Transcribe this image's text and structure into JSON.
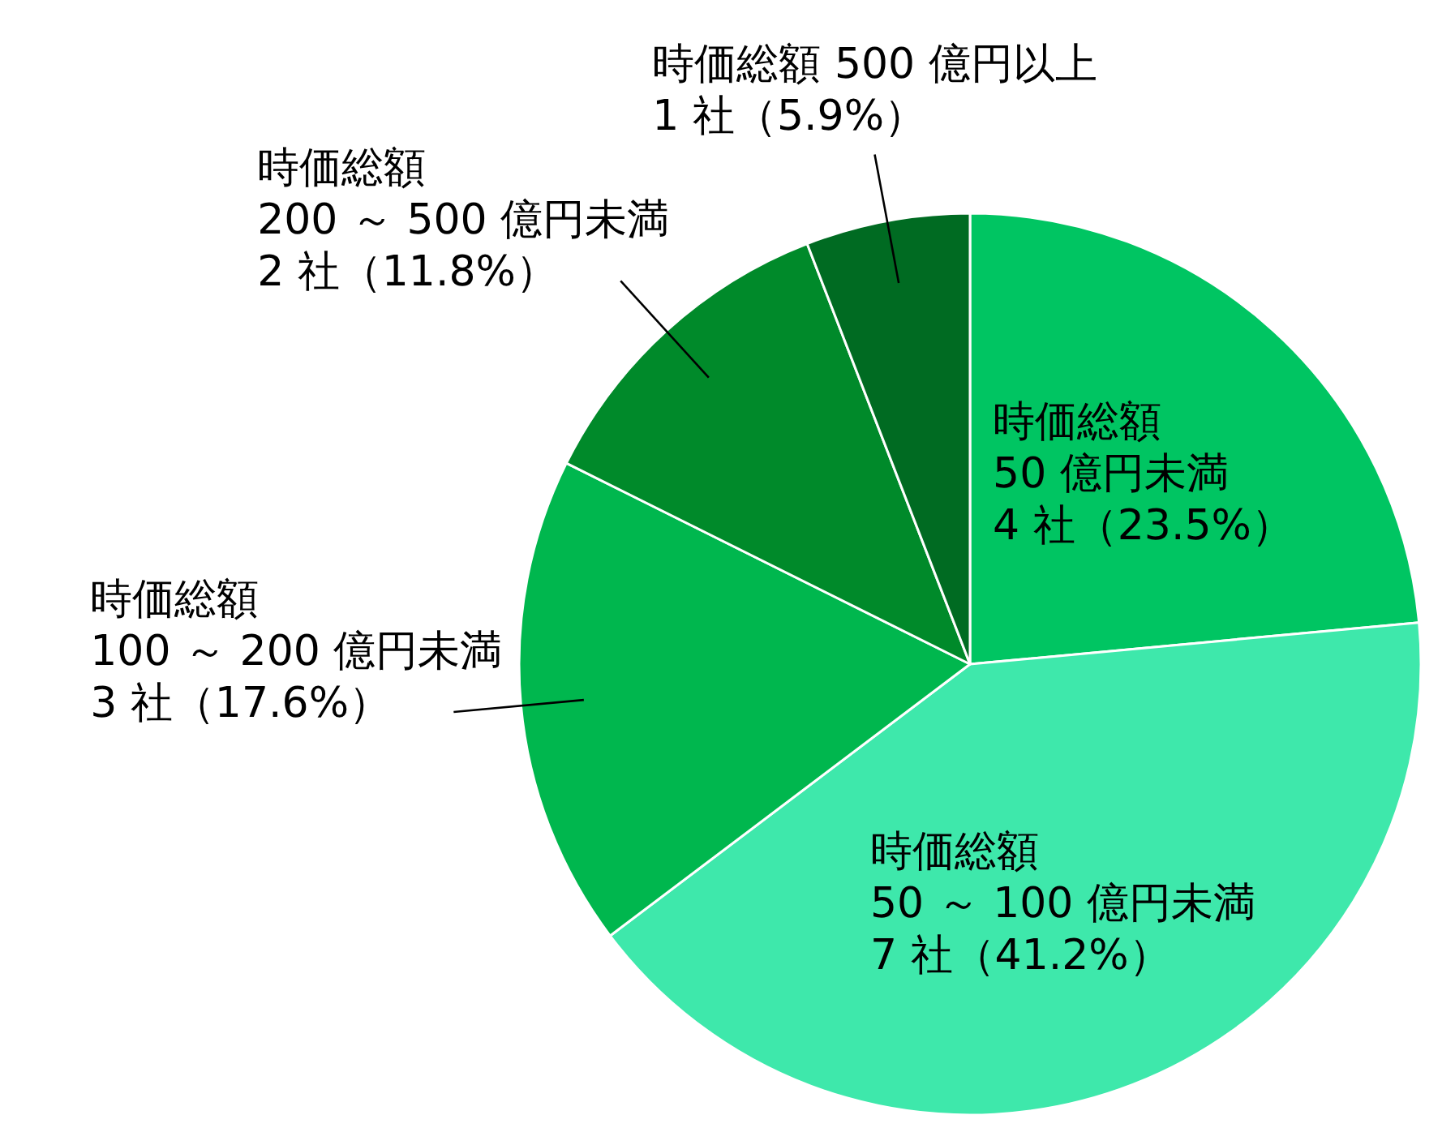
{
  "chart_data": {
    "type": "pie",
    "categories": [
      "時価総額\n50 億円未満",
      "時価総額\n50 ～ 100 億円未満",
      "時価総額\n100 ～ 200 億円未満",
      "時価総額\n200 ～ 500 億円未満",
      "時価総額 500 億円以上"
    ],
    "values": [
      4,
      7,
      3,
      2,
      1
    ],
    "value_labels": [
      "4 社（23.5%）",
      "7 社（41.2%）",
      "3 社（17.6%）",
      "2 社（11.8%）",
      "1 社（5.9%）"
    ],
    "colors": [
      "#00c562",
      "#3ee8ab",
      "#00b74e",
      "#008a2a",
      "#006b22"
    ]
  }
}
